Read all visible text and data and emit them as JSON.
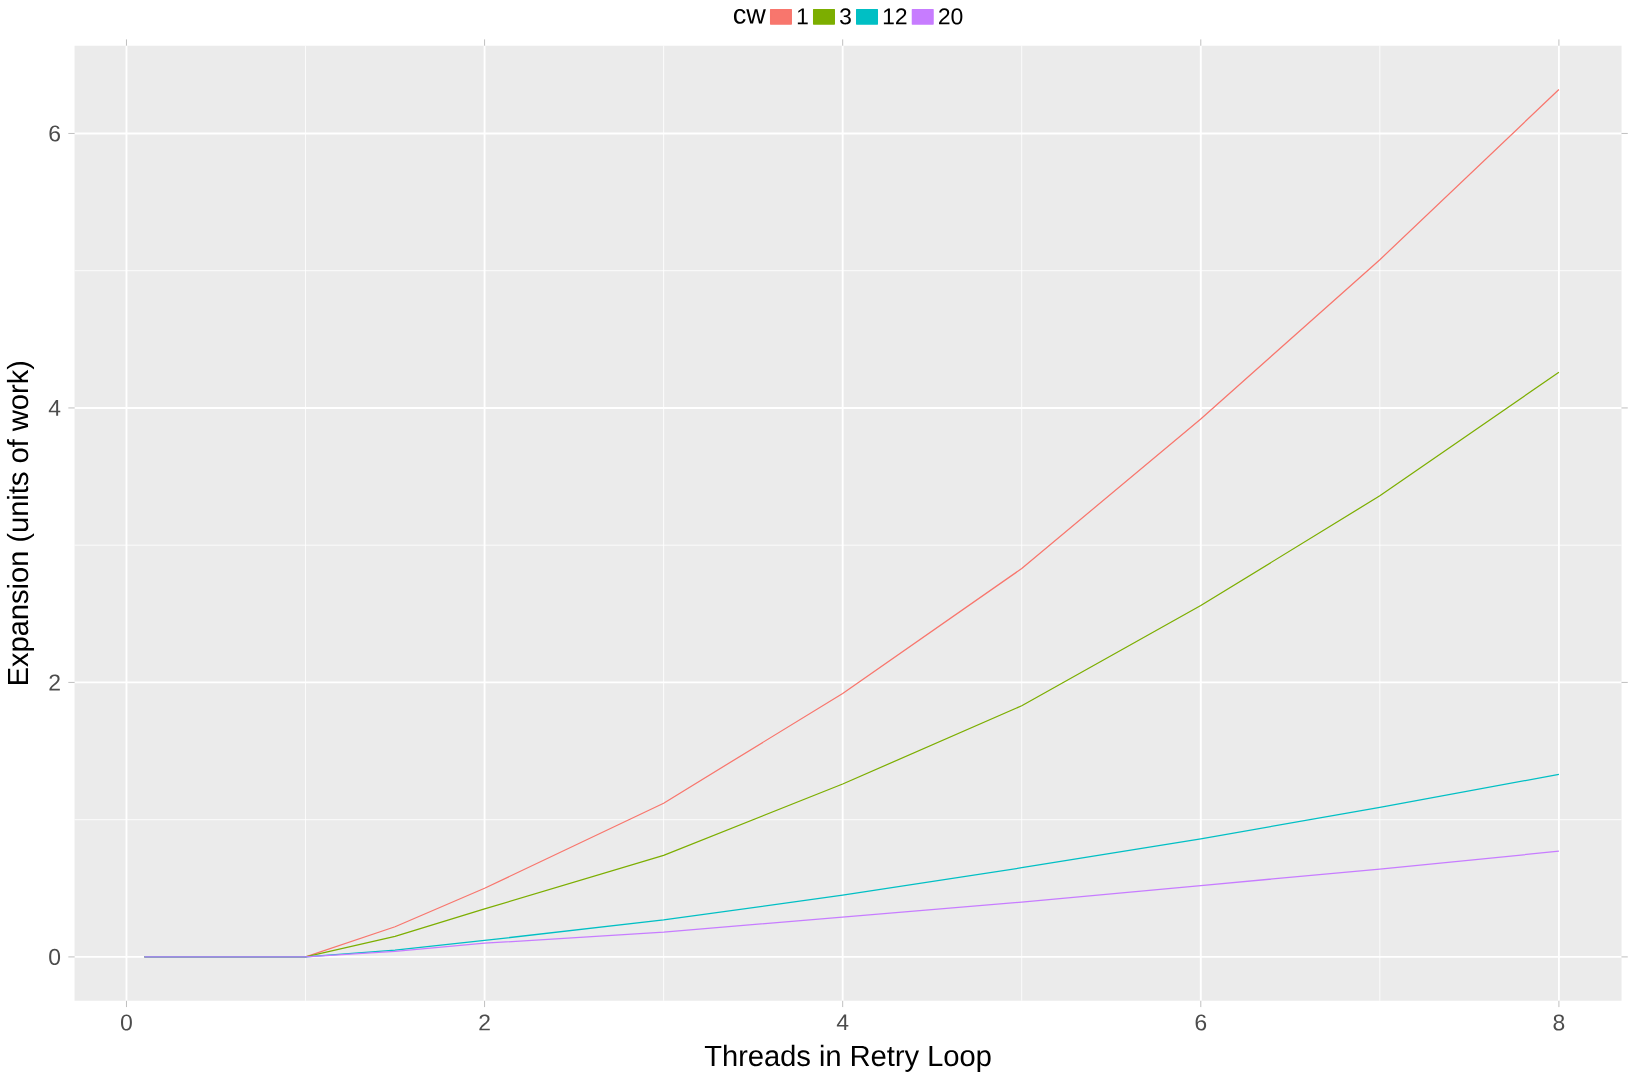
{
  "chart_data": {
    "type": "line",
    "xlabel": "Threads in Retry Loop",
    "ylabel": "Expansion (units of work)",
    "legend_title": "cw",
    "legend": "top",
    "grid": true,
    "x": [
      0.1,
      1,
      1.5,
      2,
      3,
      4,
      5,
      6,
      7,
      8
    ],
    "series": [
      {
        "name": "1",
        "color": "#f8766d",
        "values": [
          0,
          0,
          0.22,
          0.5,
          1.12,
          1.92,
          2.83,
          3.92,
          5.08,
          6.32
        ]
      },
      {
        "name": "3",
        "color": "#7cae00",
        "values": [
          0,
          0,
          0.15,
          0.35,
          0.74,
          1.26,
          1.83,
          2.56,
          3.36,
          4.26
        ]
      },
      {
        "name": "12",
        "color": "#00bfc4",
        "values": [
          0,
          0,
          0.05,
          0.12,
          0.27,
          0.45,
          0.65,
          0.86,
          1.09,
          1.33
        ]
      },
      {
        "name": "20",
        "color": "#c77cff",
        "values": [
          0,
          0,
          0.04,
          0.1,
          0.18,
          0.29,
          0.4,
          0.52,
          0.64,
          0.77
        ]
      }
    ],
    "xlim": [
      -0.29,
      8.35
    ],
    "ylim": [
      -0.32,
      6.64
    ],
    "xticks": [
      0,
      2,
      4,
      6,
      8
    ],
    "yticks": [
      0,
      2,
      4,
      6
    ]
  }
}
